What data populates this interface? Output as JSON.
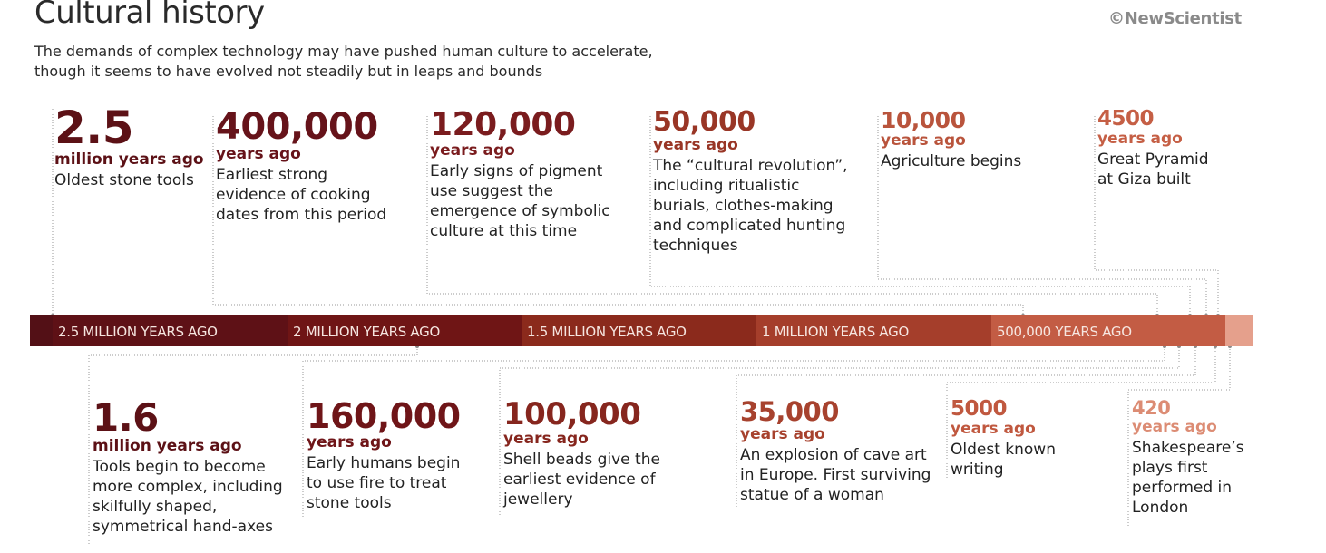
{
  "header": {
    "title": "Cultural history",
    "credit": "©NewScientist",
    "subtitle_lines": [
      "The demands of complex technology may have pushed human culture to accelerate,",
      "though it seems to have evolved not steadily but in leaps and bounds"
    ]
  },
  "timeline": {
    "segments": [
      {
        "label": "",
        "color": "#531016"
      },
      {
        "label": "2.5 MILLION YEARS AGO",
        "color": "#5e1116"
      },
      {
        "label": "2 MILLION YEARS AGO",
        "color": "#6f1515"
      },
      {
        "label": "1.5 MILLION YEARS AGO",
        "color": "#8b2a1c"
      },
      {
        "label": "1 MILLION YEARS AGO",
        "color": "#a53e2b"
      },
      {
        "label": "500,000 YEARS AGO",
        "color": "#c35c44"
      },
      {
        "label": "",
        "color": "#e5a08c"
      }
    ]
  },
  "events_top": [
    {
      "number": "2.5",
      "unit": "million years ago",
      "desc": [
        "Oldest stone tools"
      ],
      "color": "#5c1116"
    },
    {
      "number": "400,000",
      "unit": "years ago",
      "desc": [
        "Earliest strong",
        "evidence of cooking",
        "dates from this period"
      ],
      "color": "#66131a"
    },
    {
      "number": "120,000",
      "unit": "years ago",
      "desc": [
        "Early signs of pigment",
        "use suggest the",
        "emergence of symbolic",
        "culture at this time"
      ],
      "color": "#7a1c1e"
    },
    {
      "number": "50,000",
      "unit": "years ago",
      "desc": [
        "The “cultural revolution”,",
        "including ritualistic",
        "burials, clothes-making",
        "and complicated hunting",
        "techniques"
      ],
      "color": "#993626"
    },
    {
      "number": "10,000",
      "unit": "years ago",
      "desc": [
        "Agriculture begins"
      ],
      "color": "#b9543c"
    },
    {
      "number": "4500",
      "unit": "years ago",
      "desc": [
        "Great Pyramid",
        "at Giza built"
      ],
      "color": "#c55f45"
    }
  ],
  "events_bottom": [
    {
      "number": "1.6",
      "unit": "million years ago",
      "desc": [
        "Tools begin to become",
        "more complex, including",
        "skilfully shaped,",
        "symmetrical hand-axes"
      ],
      "color": "#5c1116"
    },
    {
      "number": "160,000",
      "unit": "years ago",
      "desc": [
        "Early humans begin",
        "to use fire to treat",
        "stone tools"
      ],
      "color": "#6f1518"
    },
    {
      "number": "100,000",
      "unit": "years ago",
      "desc": [
        "Shell beads give the",
        "earliest evidence of",
        "jewellery"
      ],
      "color": "#86261e"
    },
    {
      "number": "35,000",
      "unit": "years ago",
      "desc": [
        "An explosion of cave art",
        "in Europe. First surviving",
        "statue of a woman"
      ],
      "color": "#a7422e"
    },
    {
      "number": "5000",
      "unit": "years ago",
      "desc": [
        "Oldest known",
        "writing"
      ],
      "color": "#c0583f"
    },
    {
      "number": "420",
      "unit": "years ago",
      "desc": [
        "Shakespeare’s",
        "plays first",
        "performed in",
        "London"
      ],
      "color": "#dc8c74"
    }
  ]
}
